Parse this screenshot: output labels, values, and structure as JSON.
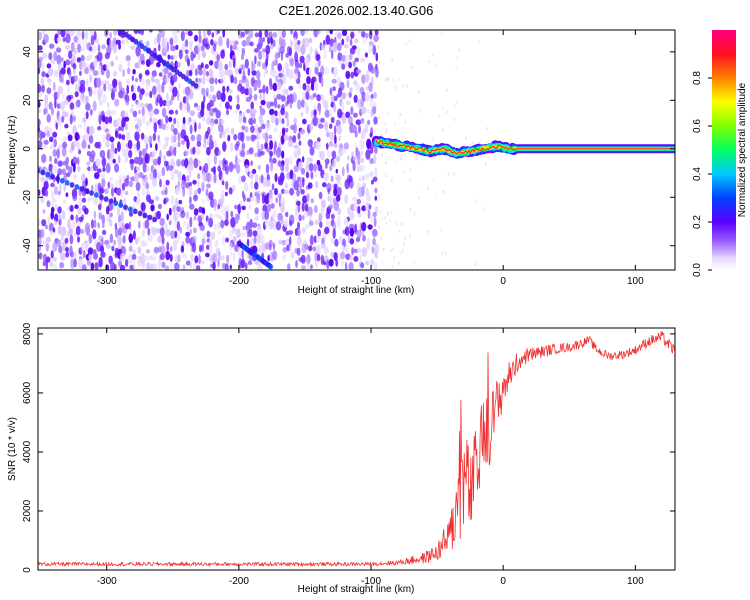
{
  "figure_title": "C2E1.2026.002.13.40.G06",
  "chart_data": [
    {
      "type": "heatmap",
      "title": "C2E1.2026.002.13.40.G06",
      "xlabel": "Height of straight line (km)",
      "ylabel": "Frequency (Hz)",
      "xlim": [
        -352,
        130
      ],
      "ylim": [
        -50,
        49
      ],
      "xticks": [
        -300,
        -200,
        -100,
        0,
        100
      ],
      "yticks": [
        -40,
        -20,
        0,
        20,
        40
      ],
      "colorbar": {
        "label": "Normalized spectral amplitude",
        "range": [
          0,
          1
        ],
        "ticks": [
          0.0,
          0.2,
          0.4,
          0.6,
          0.8
        ],
        "tick_labels": [
          "0.0",
          "0.2",
          "0.4",
          "0.6",
          "0.8"
        ],
        "colors": [
          "#ffffff",
          "#c9a8ff",
          "#6a00ff",
          "#0050ff",
          "#00e0ff",
          "#00ff40",
          "#ffff00",
          "#ff8000",
          "#ff0040",
          "#ff0080"
        ]
      },
      "features": {
        "noise_region_x": [
          -352,
          -96
        ],
        "signal_track": {
          "x": [
            -96,
            -85,
            -75,
            -65,
            -55,
            -45,
            -35,
            -25,
            -15,
            -5,
            5,
            130
          ],
          "y": [
            3,
            2,
            1,
            0,
            -1,
            0,
            -2,
            -1,
            0,
            1,
            0,
            0
          ],
          "amplitude": [
            0.3,
            0.5,
            0.6,
            0.65,
            0.7,
            0.7,
            0.7,
            0.72,
            0.75,
            0.75,
            0.8,
            0.9
          ]
        },
        "tail_line_until_x": 130
      }
    },
    {
      "type": "line",
      "xlabel": "Height of straight line (km)",
      "ylabel": "SNR (10 * v/v)",
      "xlim": [
        -352,
        130
      ],
      "ylim": [
        0,
        8200
      ],
      "xticks": [
        -300,
        -200,
        -100,
        0,
        100
      ],
      "yticks": [
        0,
        2000,
        4000,
        6000,
        8000
      ],
      "series": [
        {
          "name": "SNR",
          "color": "#f03030",
          "x": [
            -352,
            -300,
            -250,
            -200,
            -150,
            -100,
            -80,
            -60,
            -50,
            -40,
            -35,
            -30,
            -28,
            -25,
            -20,
            -15,
            -10,
            -5,
            0,
            5,
            10,
            15,
            20,
            30,
            40,
            50,
            60,
            65,
            70,
            75,
            80,
            90,
            100,
            110,
            120,
            130
          ],
          "y": [
            200,
            200,
            200,
            200,
            200,
            200,
            250,
            400,
            600,
            1200,
            2200,
            3000,
            3200,
            2500,
            3500,
            4500,
            4800,
            5500,
            6200,
            6600,
            7000,
            7200,
            7300,
            7400,
            7500,
            7550,
            7700,
            7800,
            7500,
            7350,
            7250,
            7300,
            7450,
            7750,
            7900,
            7400
          ],
          "noise_amplitude": [
            60,
            60,
            60,
            60,
            60,
            60,
            80,
            200,
            300,
            700,
            1400,
            1800,
            1500,
            1500,
            1500,
            1400,
            1200,
            1000,
            700,
            500,
            350,
            300,
            250,
            200,
            180,
            160,
            150,
            150,
            150,
            150,
            150,
            150,
            160,
            180,
            200,
            200
          ]
        }
      ]
    }
  ]
}
